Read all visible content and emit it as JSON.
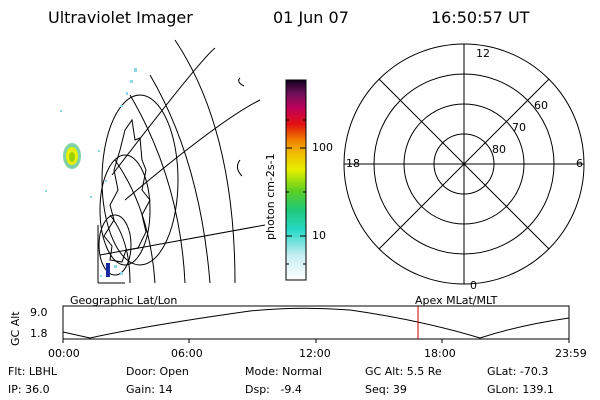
{
  "header": {
    "instrument": "Ultraviolet Imager",
    "date": "01 Jun 07",
    "time": "16:50:57 UT"
  },
  "colorbar": {
    "label": "photon cm-2s-1",
    "ticks": [
      "100",
      "10"
    ]
  },
  "polar_plot": {
    "mlt_labels": {
      "top": "12",
      "bottom": "0",
      "left": "18",
      "right": "6"
    },
    "lat_labels": [
      "60",
      "70",
      "80"
    ]
  },
  "timeline": {
    "left_title": "Geographic Lat/Lon",
    "right_title": "Apex MLat/MLT",
    "axis_label": "GC Alt",
    "y_ticks": [
      "9.0",
      "1.8"
    ],
    "x_ticks": [
      "00:00",
      "06:00",
      "12:00",
      "18:00",
      "23:59"
    ],
    "marker_color": "#cc0000"
  },
  "info": {
    "flt": "Flt: LBHL",
    "ip": "IP: 36.0",
    "door": "Door: Open",
    "gain": "Gain: 14",
    "mode": "Mode: Normal",
    "dsp": "Dsp:   -9.4",
    "gc_alt": "GC Alt: 5.5 Re",
    "seq": "Seq: 39",
    "glat": "GLat: -70.3",
    "glon": "GLon: 139.1"
  }
}
